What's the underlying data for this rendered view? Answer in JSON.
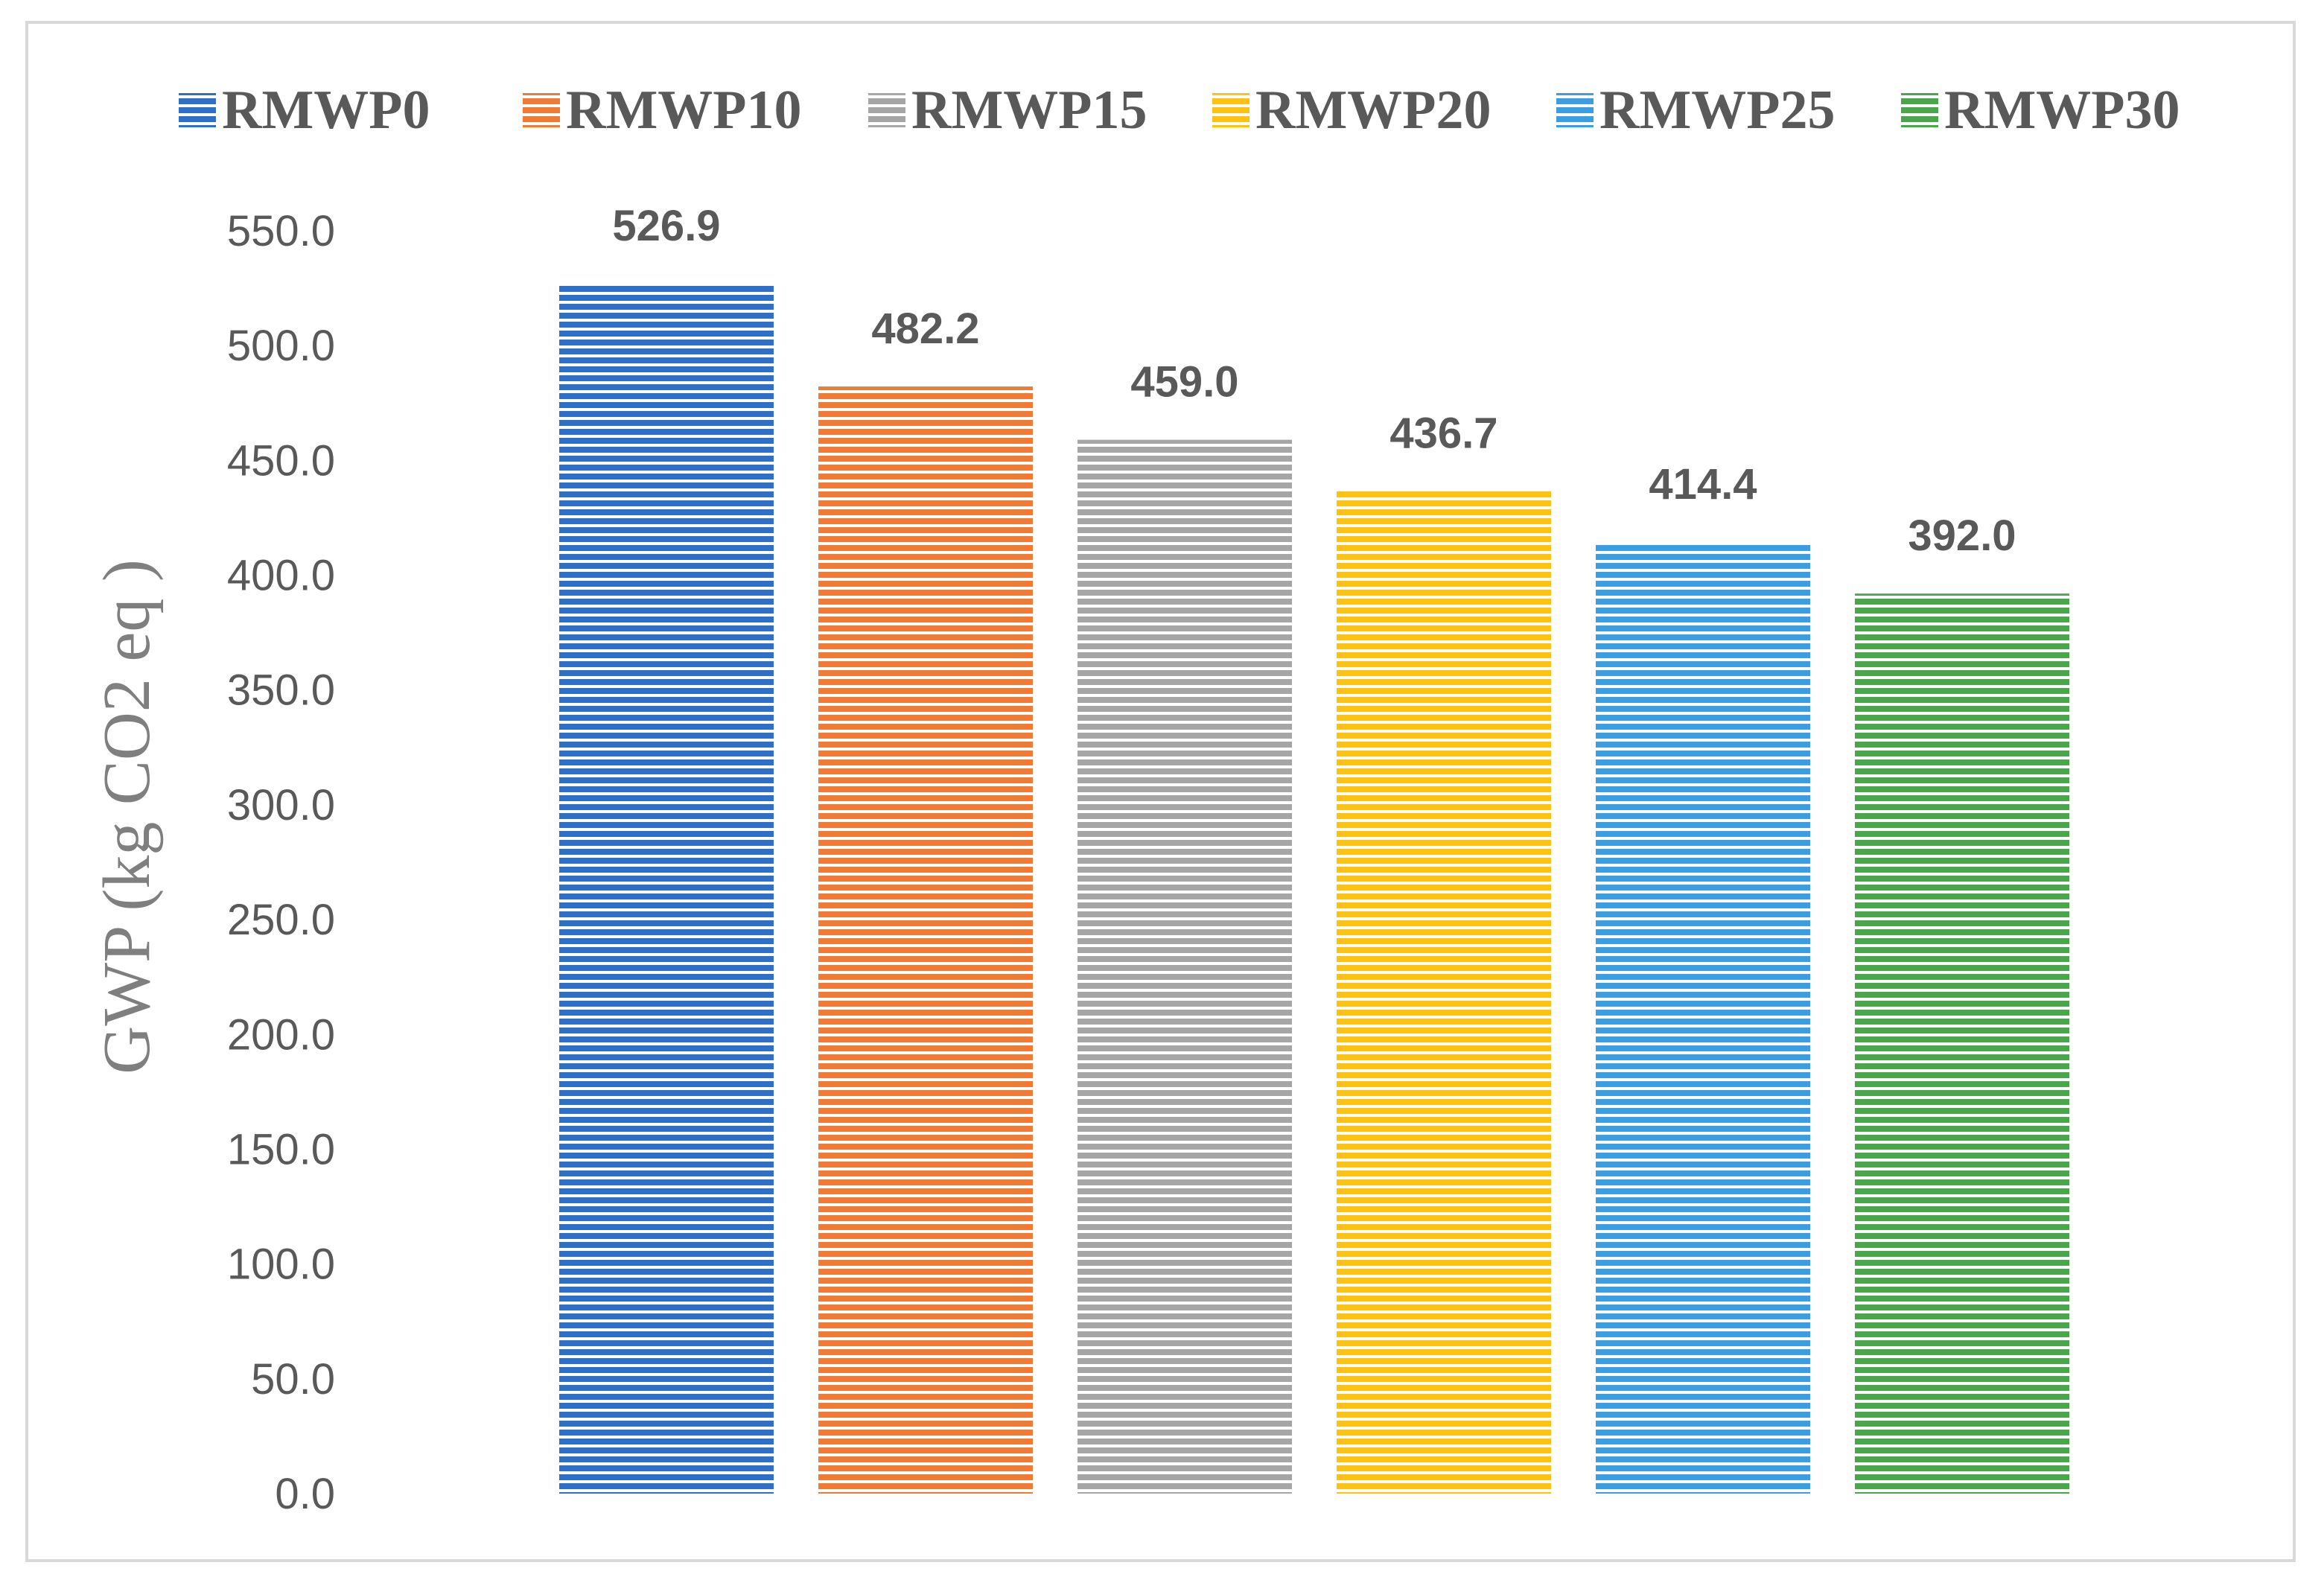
{
  "chart_data": {
    "type": "bar",
    "title": "",
    "xlabel": "",
    "ylabel": "GWP (kg CO2 eq )",
    "ylim": [
      0,
      550
    ],
    "yticks": [
      "0.0",
      "50.0",
      "100.0",
      "150.0",
      "200.0",
      "250.0",
      "300.0",
      "350.0",
      "400.0",
      "450.0",
      "500.0",
      "550.0"
    ],
    "grid": false,
    "legend_position": "top",
    "series": [
      {
        "name": "RMWP0",
        "value": 526.9,
        "label": "526.9",
        "color": "#2e6fc9"
      },
      {
        "name": "RMWP10",
        "value": 482.2,
        "label": "482.2",
        "color": "#f07c34"
      },
      {
        "name": "RMWP15",
        "value": 459.0,
        "label": "459.0",
        "color": "#a6a6a6"
      },
      {
        "name": "RMWP20",
        "value": 436.7,
        "label": "436.7",
        "color": "#ffc20e"
      },
      {
        "name": "RMWP25",
        "value": 414.4,
        "label": "414.4",
        "color": "#3a9ee4"
      },
      {
        "name": "RMWP30",
        "value": 392.0,
        "label": "392.0",
        "color": "#4aa64a"
      }
    ]
  }
}
